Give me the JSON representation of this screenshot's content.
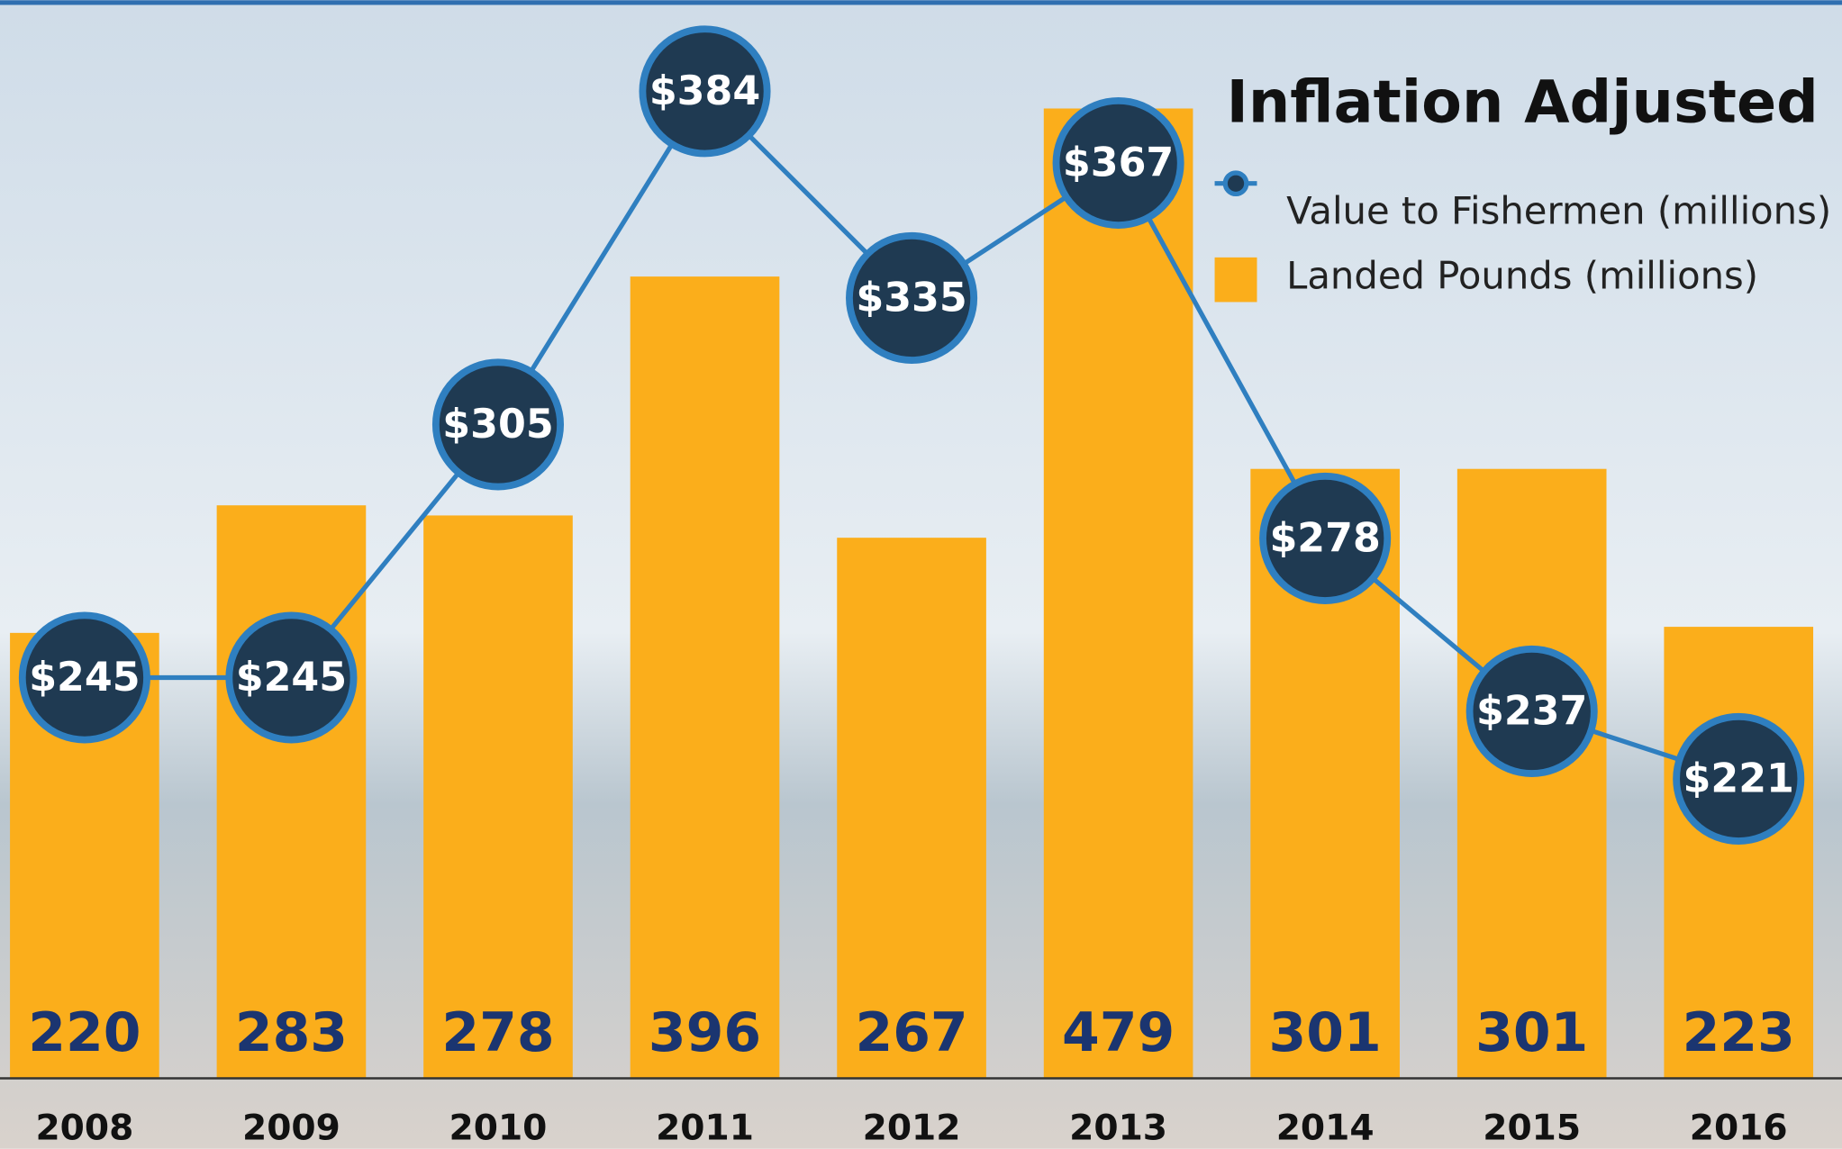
{
  "chart_data": {
    "type": "combo",
    "title": "Inflation Adjusted",
    "categories": [
      "2008",
      "2009",
      "2010",
      "2011",
      "2012",
      "2013",
      "2014",
      "2015",
      "2016"
    ],
    "series": [
      {
        "name": "Value to Fishermen (millions)",
        "type": "line",
        "axis": "y2",
        "color": "#2f7fc0",
        "values": [
          245,
          245,
          305,
          384,
          335,
          367,
          278,
          237,
          221
        ],
        "value_labels": [
          "$245",
          "$245",
          "$305",
          "$384",
          "$335",
          "$367",
          "$278",
          "$237",
          "$221"
        ]
      },
      {
        "name": "Landed Pounds (millions)",
        "type": "bar",
        "color": "#fbae1b",
        "values": [
          220,
          283,
          278,
          396,
          267,
          479,
          301,
          301,
          223
        ]
      }
    ],
    "ylim": [
      0,
      500
    ],
    "y2lim": [
      150,
      390
    ],
    "legend": "upper right"
  }
}
